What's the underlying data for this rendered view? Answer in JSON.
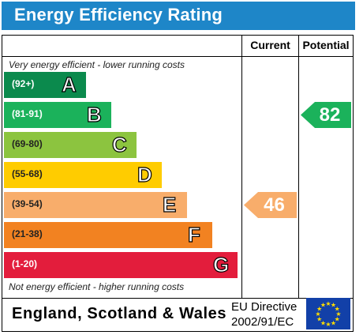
{
  "title": "Energy Efficiency Rating",
  "columns": {
    "current": "Current",
    "potential": "Potential"
  },
  "notes": {
    "top": "Very energy efficient - lower running costs",
    "bottom": "Not energy efficient - higher running costs"
  },
  "footer": {
    "country": "England, Scotland & Wales",
    "directive_line1": "EU Directive",
    "directive_line2": "2002/91/EC"
  },
  "chart_data": {
    "type": "bar",
    "categories": [
      "A",
      "B",
      "C",
      "D",
      "E",
      "F",
      "G"
    ],
    "bands": [
      {
        "letter": "A",
        "range": "(92+)",
        "color": "#0b8a4d"
      },
      {
        "letter": "B",
        "range": "(81-91)",
        "color": "#1bb25b"
      },
      {
        "letter": "C",
        "range": "(69-80)",
        "color": "#8cc43f"
      },
      {
        "letter": "D",
        "range": "(55-68)",
        "color": "#ffcc00"
      },
      {
        "letter": "E",
        "range": "(39-54)",
        "color": "#f8ad6b"
      },
      {
        "letter": "F",
        "range": "(21-38)",
        "color": "#f28221"
      },
      {
        "letter": "G",
        "range": "(1-20)",
        "color": "#e31d3c"
      }
    ],
    "current": {
      "value": 46,
      "band": "E",
      "color": "#f8ad6b"
    },
    "potential": {
      "value": 82,
      "band": "B",
      "color": "#1bb25b"
    }
  }
}
